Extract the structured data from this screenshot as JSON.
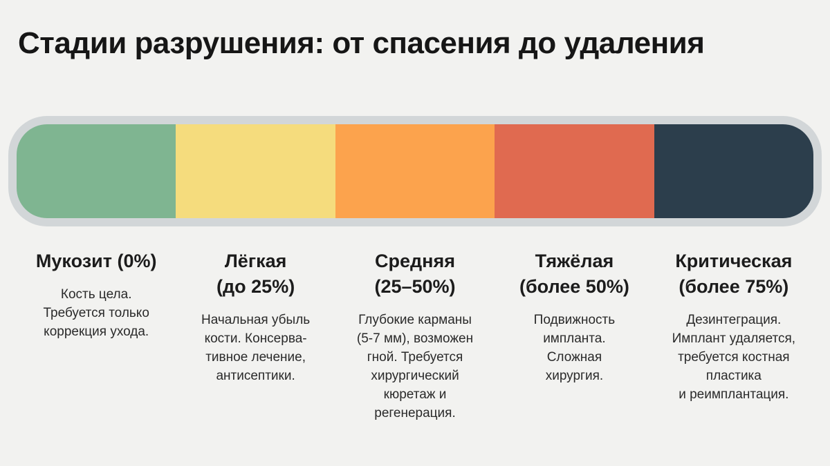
{
  "title": "Стадии разрушения: от спасения до удаления",
  "colors": {
    "background": "#f2f2f0",
    "frame": "#d2d6d8"
  },
  "stages": [
    {
      "title_lines": [
        "Мукозит (0%)"
      ],
      "description_lines": [
        "Кость цела.",
        "Требуется только",
        "коррекция ухода."
      ],
      "color": "#7fb591"
    },
    {
      "title_lines": [
        "Лёгкая",
        "(до 25%)"
      ],
      "description_lines": [
        "Начальная убыль",
        "кости. Консерва-",
        "тивное лечение,",
        "антисептики."
      ],
      "color": "#f5dc7d"
    },
    {
      "title_lines": [
        "Средняя",
        "(25–50%)"
      ],
      "description_lines": [
        "Глубокие карманы",
        "(5-7 мм), возможен",
        "гной. Требуется",
        "хирургический",
        "кюретаж и",
        "регенерация."
      ],
      "color": "#fca34d"
    },
    {
      "title_lines": [
        "Тяжёлая",
        "(более 50%)"
      ],
      "description_lines": [
        "Подвижность",
        "импланта.",
        "Сложная",
        "хирургия."
      ],
      "color": "#e06a50"
    },
    {
      "title_lines": [
        "Критическая",
        "(более 75%)"
      ],
      "description_lines": [
        "Дезинтеграция.",
        "Имплант удаляется,",
        "требуется костная",
        "пластика",
        "и реимплантация."
      ],
      "color": "#2c3e4c"
    }
  ]
}
